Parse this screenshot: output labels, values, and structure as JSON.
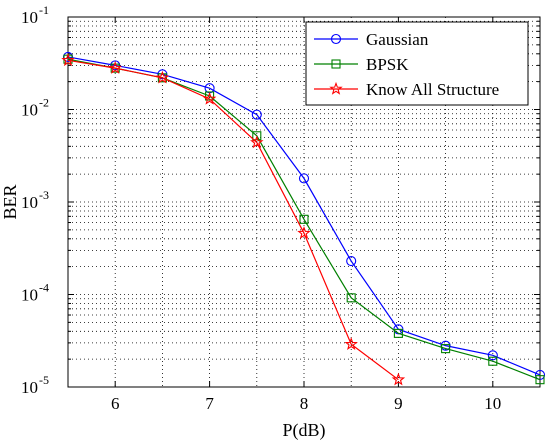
{
  "chart_data": {
    "type": "line",
    "xlabel": "P(dB)",
    "ylabel": "BER",
    "xlim": [
      5.5,
      10.5
    ],
    "ylim": [
      1e-05,
      0.1
    ],
    "yscale": "log",
    "grid": true,
    "legend_position": "top-right",
    "x_ticks": [
      6,
      7,
      8,
      9,
      10
    ],
    "x_tick_labels": [
      "6",
      "7",
      "8",
      "9",
      "10"
    ],
    "y_ticks": [
      1e-05,
      0.0001,
      0.001,
      0.01,
      0.1
    ],
    "y_tick_labels": [
      {
        "base": "10",
        "exp": "-5"
      },
      {
        "base": "10",
        "exp": "-4"
      },
      {
        "base": "10",
        "exp": "-3"
      },
      {
        "base": "10",
        "exp": "-2"
      },
      {
        "base": "10",
        "exp": "-1"
      }
    ],
    "series": [
      {
        "name": "Gaussian",
        "color": "#0000ff",
        "marker": "circle",
        "x": [
          5.5,
          6,
          6.5,
          7,
          7.5,
          8,
          8.5,
          9,
          9.5,
          10,
          10.5
        ],
        "y": [
          0.037,
          0.03,
          0.024,
          0.017,
          0.0088,
          0.0018,
          0.00023,
          4.2e-05,
          2.8e-05,
          2.2e-05,
          1.35e-05
        ]
      },
      {
        "name": "BPSK",
        "color": "#008000",
        "marker": "square",
        "x": [
          5.5,
          6,
          6.5,
          7,
          7.5,
          8,
          8.5,
          9,
          9.5,
          10,
          10.5
        ],
        "y": [
          0.035,
          0.028,
          0.022,
          0.014,
          0.0052,
          0.00065,
          9.2e-05,
          3.8e-05,
          2.6e-05,
          1.9e-05,
          1.2e-05
        ]
      },
      {
        "name": "Know All Structure",
        "color": "#ff0000",
        "marker": "star",
        "x": [
          5.5,
          6,
          6.5,
          7,
          7.5,
          8,
          8.5,
          9
        ],
        "y": [
          0.034,
          0.028,
          0.022,
          0.013,
          0.0044,
          0.00046,
          2.9e-05,
          1.2e-05
        ]
      }
    ]
  }
}
